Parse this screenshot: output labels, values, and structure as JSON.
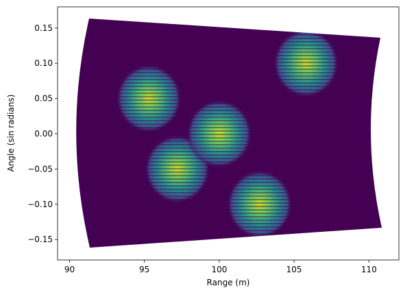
{
  "chart_data": {
    "type": "heatmap",
    "xlabel": "Range (m)",
    "ylabel": "Angle (sin radians)",
    "x": [
      95.3,
      97.2,
      100.0,
      102.7,
      105.8
    ],
    "y": [
      0.05,
      -0.05,
      0.0,
      -0.1,
      0.1
    ],
    "xlim": [
      89.2,
      112.0
    ],
    "ylim": [
      -0.179,
      0.18
    ],
    "xticks": [
      90,
      95,
      100,
      105,
      110
    ],
    "yticks": [
      0.15,
      {
        "value": 0.1,
        "label": "0.10"
      },
      0.05,
      {
        "value": 0,
        "label": "0.00"
      },
      {
        "value": -0.05,
        "label": "−0.05"
      },
      {
        "value": -0.1,
        "label": "−0.10"
      },
      {
        "value": -0.15,
        "label": "−0.15"
      }
    ],
    "grid": false
  }
}
